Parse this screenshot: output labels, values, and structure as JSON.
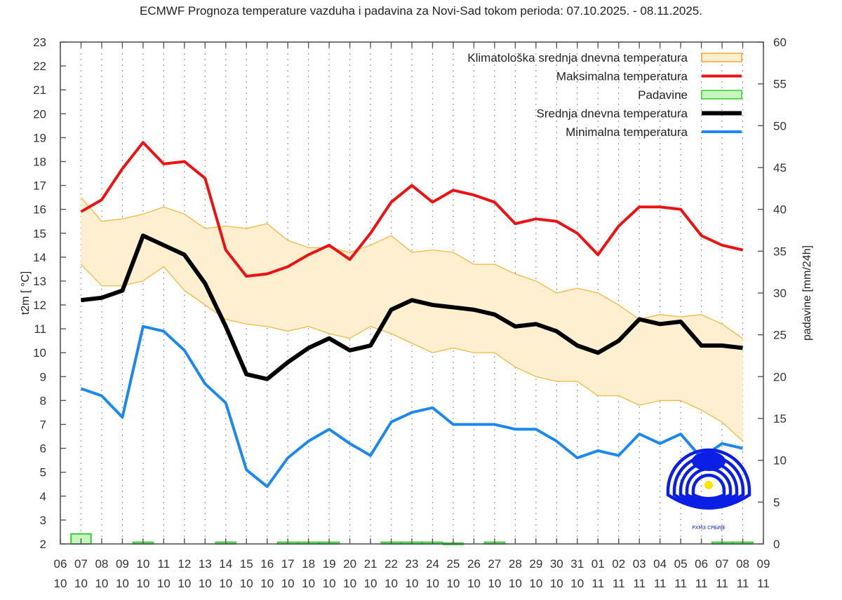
{
  "chart_data": {
    "type": "line",
    "title": "ECMWF Prognoza temperature vazduha i padavina za Novi-Sad tokom perioda: 07.10.2025. - 08.11.2025.",
    "ylabel": "t2m [ °C]",
    "y2label": "padavine [mm/24h]",
    "ylim": [
      2,
      23
    ],
    "y2lim": [
      0,
      60
    ],
    "yticks": [
      "2",
      "3",
      "4",
      "5",
      "6",
      "7",
      "8",
      "9",
      "10",
      "11",
      "12",
      "13",
      "14",
      "15",
      "16",
      "17",
      "18",
      "19",
      "20",
      "21",
      "22",
      "23"
    ],
    "y2ticks": [
      "0",
      "5",
      "10",
      "15",
      "20",
      "25",
      "30",
      "35",
      "40",
      "45",
      "50",
      "55",
      "60"
    ],
    "xticks": [
      [
        "06",
        "10"
      ],
      [
        "07",
        "10"
      ],
      [
        "08",
        "10"
      ],
      [
        "09",
        "10"
      ],
      [
        "10",
        "10"
      ],
      [
        "11",
        "10"
      ],
      [
        "12",
        "10"
      ],
      [
        "13",
        "10"
      ],
      [
        "14",
        "10"
      ],
      [
        "15",
        "10"
      ],
      [
        "16",
        "10"
      ],
      [
        "17",
        "10"
      ],
      [
        "18",
        "10"
      ],
      [
        "19",
        "10"
      ],
      [
        "20",
        "10"
      ],
      [
        "21",
        "10"
      ],
      [
        "22",
        "10"
      ],
      [
        "23",
        "10"
      ],
      [
        "24",
        "10"
      ],
      [
        "25",
        "10"
      ],
      [
        "26",
        "10"
      ],
      [
        "27",
        "10"
      ],
      [
        "28",
        "10"
      ],
      [
        "29",
        "10"
      ],
      [
        "30",
        "10"
      ],
      [
        "31",
        "10"
      ],
      [
        "01",
        "11"
      ],
      [
        "02",
        "11"
      ],
      [
        "03",
        "11"
      ],
      [
        "04",
        "11"
      ],
      [
        "05",
        "11"
      ],
      [
        "06",
        "11"
      ],
      [
        "07",
        "11"
      ],
      [
        "08",
        "11"
      ],
      [
        "09",
        "11"
      ]
    ],
    "grid": "vertical-dotted",
    "legend_position": "top-right",
    "x_day_index_start": 1,
    "series": [
      {
        "name": "Klimatološka srednja dnevna temperatura",
        "kind": "band",
        "color": "#f5b942",
        "fill": "#fdefd0",
        "upper": [
          16.5,
          15.5,
          15.6,
          15.8,
          16.1,
          15.8,
          15.2,
          15.3,
          15.2,
          15.4,
          14.7,
          14.4,
          14.4,
          14.2,
          14.5,
          14.9,
          14.2,
          14.3,
          14.2,
          13.7,
          13.7,
          13.3,
          13.0,
          12.5,
          12.7,
          12.5,
          12.0,
          11.4,
          11.6,
          11.5,
          11.6,
          11.2,
          10.6
        ],
        "lower": [
          13.7,
          12.8,
          12.8,
          13.0,
          13.6,
          12.6,
          12.0,
          11.4,
          11.2,
          11.1,
          10.9,
          11.1,
          10.8,
          10.6,
          11.1,
          10.8,
          10.4,
          10.0,
          10.2,
          10.0,
          10.0,
          9.4,
          9.0,
          8.8,
          8.8,
          8.2,
          8.2,
          7.8,
          8.0,
          8.0,
          7.6,
          7.1,
          6.3
        ]
      },
      {
        "name": "Maksimalna temperatura",
        "kind": "line",
        "color": "#ee1111",
        "values": [
          15.9,
          16.4,
          17.7,
          18.8,
          17.9,
          18.0,
          17.3,
          14.3,
          13.2,
          13.3,
          13.6,
          14.1,
          14.5,
          13.9,
          15.0,
          16.3,
          17.0,
          16.3,
          16.8,
          16.6,
          16.3,
          15.4,
          15.6,
          15.5,
          15.0,
          14.1,
          15.3,
          16.1,
          16.1,
          16.0,
          14.9,
          14.5,
          14.3
        ]
      },
      {
        "name": "Padavine",
        "kind": "bar",
        "color": "#33cc33",
        "fill": "#c8f5c0",
        "values": [
          1.2,
          0,
          0,
          0.2,
          0,
          0,
          0,
          0.2,
          0,
          0,
          0.2,
          0.2,
          0.2,
          0,
          0,
          0.2,
          0.2,
          0.2,
          0.1,
          0,
          0.2,
          0,
          0,
          0,
          0,
          0,
          0,
          0,
          0,
          0,
          0,
          0.2,
          0.2
        ]
      },
      {
        "name": "Srednja dnevna temperatura",
        "kind": "line",
        "color": "#000000",
        "values": [
          12.2,
          12.3,
          12.6,
          14.9,
          14.5,
          14.1,
          12.9,
          11.1,
          9.1,
          8.9,
          9.6,
          10.2,
          10.6,
          10.1,
          10.3,
          11.8,
          12.2,
          12.0,
          11.9,
          11.8,
          11.6,
          11.1,
          11.2,
          10.9,
          10.3,
          10.0,
          10.5,
          11.4,
          11.2,
          11.3,
          10.3,
          10.3,
          10.2
        ]
      },
      {
        "name": "Minimalna temperatura",
        "kind": "line",
        "color": "#1a88f0",
        "values": [
          8.5,
          8.2,
          7.3,
          11.1,
          10.9,
          10.1,
          8.7,
          7.9,
          5.1,
          4.4,
          5.6,
          6.3,
          6.8,
          6.2,
          5.7,
          7.1,
          7.5,
          7.7,
          7.0,
          7.0,
          7.0,
          6.8,
          6.8,
          6.3,
          5.6,
          5.9,
          5.7,
          6.6,
          6.2,
          6.6,
          5.6,
          6.2,
          6.0
        ]
      }
    ],
    "logo": {
      "name": "rhmz-srbije-logo-icon",
      "text": "РХМЗ СРБИЈЕ"
    }
  }
}
